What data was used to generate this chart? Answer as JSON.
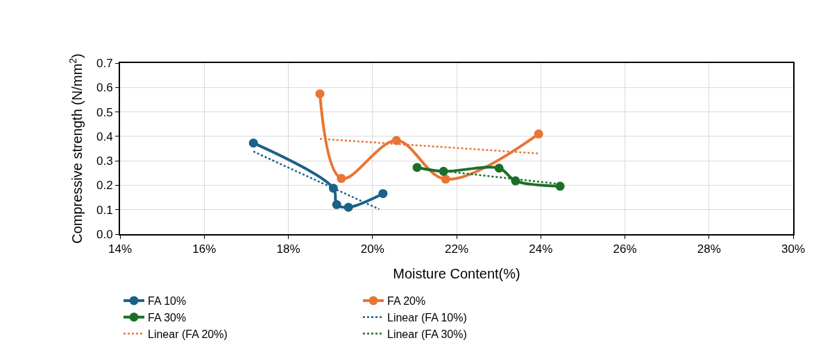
{
  "chart_data": {
    "type": "line",
    "xlabel": "Moisture Content(%)",
    "ylabel": "Compressive strength (N/mm$^{2}$)",
    "xlim": [
      14,
      30
    ],
    "xticks": [
      {
        "value": 14,
        "label": "14%"
      },
      {
        "value": 16,
        "label": "16%"
      },
      {
        "value": 18,
        "label": "18%"
      },
      {
        "value": 20,
        "label": "20%"
      },
      {
        "value": 22,
        "label": "22%"
      },
      {
        "value": 24,
        "label": "24%"
      },
      {
        "value": 26,
        "label": "26%"
      },
      {
        "value": 28,
        "label": "28%"
      },
      {
        "value": 30,
        "label": "30%"
      }
    ],
    "ylim": [
      0,
      0.7
    ],
    "yticks": [
      {
        "value": 0,
        "label": "0.0"
      },
      0.1,
      0.2,
      0.3,
      0.4,
      0.5,
      0.6,
      0.7
    ],
    "grid": true,
    "legend": "bottom",
    "series": [
      {
        "name": "FA 10%",
        "color": "#1a6188",
        "x": [
          17.17,
          19.07,
          19.15,
          19.43,
          20.25
        ],
        "values": [
          0.373,
          0.188,
          0.121,
          0.11,
          0.166
        ],
        "line_style": "solid",
        "marker": "circle"
      },
      {
        "name": "FA 20%",
        "color": "#e97434",
        "x": [
          18.75,
          19.26,
          20.57,
          21.74,
          23.95
        ],
        "values": [
          0.574,
          0.228,
          0.383,
          0.225,
          0.41
        ],
        "line_style": "solid",
        "marker": "circle"
      },
      {
        "name": "FA 30%",
        "color": "#1d6e28",
        "x": [
          21.06,
          21.69,
          23.01,
          23.4,
          24.46
        ],
        "values": [
          0.273,
          0.257,
          0.27,
          0.218,
          0.196
        ],
        "line_style": "solid",
        "marker": "circle"
      },
      {
        "name": "Linear (FA 10%)",
        "color": "#1a6188",
        "x": [
          17.17,
          20.16
        ],
        "values": [
          0.338,
          0.102
        ],
        "line_style": "dotted",
        "marker": "none"
      },
      {
        "name": "Linear (FA 20%)",
        "color": "#e97434",
        "x": [
          18.75,
          23.95
        ],
        "values": [
          0.39,
          0.33
        ],
        "line_style": "dotted",
        "marker": "none"
      },
      {
        "name": "Linear (FA 30%)",
        "color": "#1d6e28",
        "x": [
          21.06,
          24.46
        ],
        "values": [
          0.27,
          0.205
        ],
        "line_style": "dotted",
        "marker": "none"
      }
    ]
  }
}
